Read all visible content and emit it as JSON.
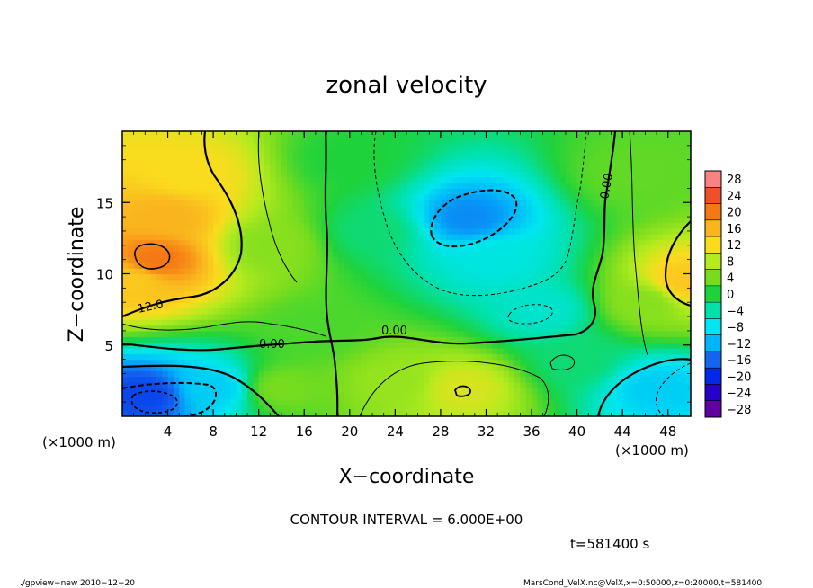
{
  "chart_data": {
    "type": "heatmap",
    "title": "zonal velocity",
    "xlabel": "X−coordinate",
    "ylabel": "Z−coordinate",
    "x_unit_label": "(×1000 m)",
    "y_unit_label": "(×1000 m)",
    "xlim": [
      0,
      50
    ],
    "ylim": [
      0,
      20
    ],
    "x_ticks": [
      4,
      8,
      12,
      16,
      20,
      24,
      28,
      32,
      36,
      40,
      44,
      48
    ],
    "y_ticks": [
      5,
      10,
      15
    ],
    "colorbar_levels": [
      28,
      24,
      20,
      16,
      12,
      8,
      4,
      0,
      -4,
      -8,
      -12,
      -16,
      -20,
      -24,
      -28
    ],
    "colorbar_labels": [
      "28",
      "24",
      "20",
      "16",
      "12",
      "8",
      "4",
      "0",
      "−4",
      "−8",
      "−12",
      "−16",
      "−20",
      "−24",
      "−28"
    ],
    "contour_interval_text": "CONTOUR INTERVAL = 6.000E+00",
    "contour_labels": [
      {
        "text": "12.0",
        "x": 3.0,
        "y": 7.8
      },
      {
        "text": "0.00",
        "x": 14.3,
        "y": 5.1
      },
      {
        "text": "0.00",
        "x": 24.5,
        "y": 5.9
      },
      {
        "text": "0.00",
        "x": 43.0,
        "y": 16.5
      }
    ],
    "value_field": [
      {
        "x": 3.0,
        "y": 11.0,
        "v": 20
      },
      {
        "x": 4.0,
        "y": 14.0,
        "v": 16
      },
      {
        "x": 1.0,
        "y": 9.5,
        "v": 14
      },
      {
        "x": 6.0,
        "y": 17.0,
        "v": 12
      },
      {
        "x": 2.0,
        "y": 1.5,
        "v": -18
      },
      {
        "x": 8.0,
        "y": 2.0,
        "v": -10
      },
      {
        "x": 30.5,
        "y": 14.0,
        "v": -14
      },
      {
        "x": 33.0,
        "y": 11.0,
        "v": -7
      },
      {
        "x": 37.0,
        "y": 7.5,
        "v": -6
      },
      {
        "x": 40.0,
        "y": 4.0,
        "v": -2
      },
      {
        "x": 47.0,
        "y": 2.0,
        "v": -10
      },
      {
        "x": 49.5,
        "y": 9.5,
        "v": 14
      },
      {
        "x": 30.0,
        "y": 2.0,
        "v": 10
      },
      {
        "x": 24.0,
        "y": 2.5,
        "v": 6
      },
      {
        "x": 13.0,
        "y": 12.0,
        "v": 5
      },
      {
        "x": 22.0,
        "y": 13.0,
        "v": -2
      },
      {
        "x": 20.0,
        "y": 18.0,
        "v": 0
      },
      {
        "x": 45.0,
        "y": 17.0,
        "v": 3
      },
      {
        "x": 46.0,
        "y": 8.0,
        "v": 5
      },
      {
        "x": 14.0,
        "y": 2.0,
        "v": 4
      },
      {
        "x": 17.0,
        "y": 6.0,
        "v": 2
      }
    ]
  },
  "footer": {
    "time_label": "t=581400 s",
    "program_label": "./gpview−new  2010−12−20",
    "source_label": "MarsCond_VelX.nc@VelX,x=0:50000,z=0:20000,t=581400"
  }
}
